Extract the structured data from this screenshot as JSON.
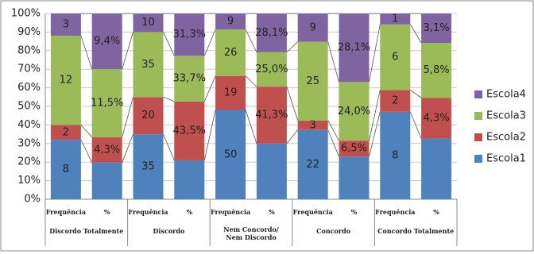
{
  "chart_data": {
    "type": "bar",
    "stacked": "percent",
    "categories": [
      "Frequência",
      "%",
      "Frequência",
      "%",
      "Frequência",
      "%",
      "Frequência",
      "%",
      "Frequência",
      "%"
    ],
    "groups": [
      "Discordo Totalmente",
      "Discordo",
      "Nem Concordo/Nem Discordo",
      "Concordo",
      "Concordo Totalmente"
    ],
    "series": [
      {
        "name": "Escola1",
        "color": "#4f81bd",
        "values": [
          8,
          6.2,
          35,
          28.8,
          50,
          40.5,
          22,
          17.5,
          8,
          6.4
        ],
        "value_labels": [
          "8",
          null,
          "35",
          null,
          "50",
          null,
          "22",
          null,
          "8",
          null
        ]
      },
      {
        "name": "Escola2",
        "color": "#c0504d",
        "values": [
          2,
          4.3,
          20,
          43.5,
          19,
          41.3,
          3,
          6.5,
          2,
          4.3
        ],
        "value_labels": [
          "2",
          "4,3%",
          "20",
          "43,5%",
          "19",
          "41,3%",
          "3",
          "6,5%",
          "2",
          "4,3%"
        ]
      },
      {
        "name": "Escola3",
        "color": "#9bbb59",
        "values": [
          12,
          11.5,
          35,
          33.7,
          26,
          25.0,
          25,
          24.0,
          6,
          5.8
        ],
        "value_labels": [
          "12",
          "11,5%",
          "35",
          "33,7%",
          "26",
          "25,0%",
          "25",
          "24,0%",
          "6",
          "5,8%"
        ]
      },
      {
        "name": "Escola4",
        "color": "#8064a2",
        "values": [
          3,
          9.4,
          10,
          31.3,
          9,
          28.1,
          9,
          28.1,
          1,
          3.1
        ],
        "value_labels": [
          "3",
          "9,4%",
          "10",
          "31,3%",
          "9",
          "28,1%",
          "9",
          "28,1%",
          "1",
          "3,1%"
        ]
      }
    ],
    "ylim": [
      0,
      100
    ],
    "yticks": [
      {
        "value": 0,
        "label": "0%"
      },
      {
        "value": 10,
        "label": "10%"
      },
      {
        "value": 20,
        "label": "20%"
      },
      {
        "value": 30,
        "label": "30%"
      },
      {
        "value": 40,
        "label": "40%"
      },
      {
        "value": 50,
        "label": "50%"
      },
      {
        "value": 60,
        "label": "60%"
      },
      {
        "value": 70,
        "label": "70%"
      },
      {
        "value": 80,
        "label": "80%"
      },
      {
        "value": 90,
        "label": "90%"
      },
      {
        "value": 100,
        "label": "100%"
      }
    ],
    "grid": true,
    "legend": "right"
  }
}
